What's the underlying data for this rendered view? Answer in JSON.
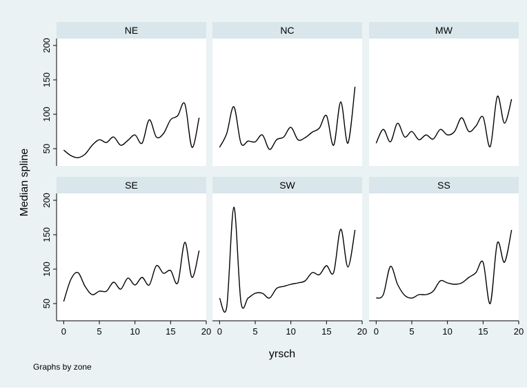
{
  "chart_data": {
    "type": "line",
    "xlabel": "yrsch",
    "ylabel": "Median spline",
    "note": "Graphs by zone",
    "xlim": [
      -1,
      20
    ],
    "ylim": [
      25,
      210
    ],
    "xticks": [
      0,
      5,
      10,
      15,
      20
    ],
    "yticks": [
      50,
      100,
      150,
      200
    ],
    "grid": false,
    "colors": {
      "background": "#eaf2f3",
      "plot_bg": "#ffffff",
      "strip_bg": "#d9e6eb",
      "line": "#000000"
    },
    "panels": [
      {
        "name": "NE",
        "x": [
          0,
          1,
          2,
          3,
          4,
          5,
          6,
          7,
          8,
          9,
          10,
          11,
          12,
          13,
          14,
          15,
          16,
          17,
          18,
          19
        ],
        "values": [
          48,
          40,
          37,
          42,
          55,
          63,
          59,
          67,
          55,
          62,
          70,
          58,
          92,
          67,
          72,
          92,
          98,
          115,
          52,
          95
        ]
      },
      {
        "name": "NC",
        "x": [
          0,
          1,
          2,
          3,
          4,
          5,
          6,
          7,
          8,
          9,
          10,
          11,
          12,
          13,
          14,
          15,
          16,
          17,
          18,
          19
        ],
        "values": [
          52,
          72,
          111,
          58,
          61,
          60,
          70,
          49,
          63,
          67,
          81,
          63,
          66,
          74,
          80,
          98,
          55,
          118,
          58,
          140
        ]
      },
      {
        "name": "MW",
        "x": [
          0,
          1,
          2,
          3,
          4,
          5,
          6,
          7,
          8,
          9,
          10,
          11,
          12,
          13,
          14,
          15,
          16,
          17,
          18,
          19
        ],
        "values": [
          58,
          78,
          60,
          87,
          67,
          75,
          63,
          70,
          64,
          78,
          70,
          75,
          95,
          75,
          83,
          96,
          53,
          126,
          87,
          122
        ]
      },
      {
        "name": "SE",
        "x": [
          0,
          1,
          2,
          3,
          4,
          5,
          6,
          7,
          8,
          9,
          10,
          11,
          12,
          13,
          14,
          15,
          16,
          17,
          18,
          19
        ],
        "values": [
          53,
          85,
          95,
          75,
          63,
          68,
          68,
          81,
          71,
          87,
          77,
          88,
          77,
          105,
          94,
          98,
          80,
          139,
          88,
          127
        ]
      },
      {
        "name": "SW",
        "x": [
          0,
          1,
          2,
          3,
          4,
          5,
          6,
          7,
          8,
          9,
          10,
          11,
          12,
          13,
          14,
          15,
          16,
          17,
          18,
          19
        ],
        "values": [
          58,
          45,
          190,
          52,
          58,
          65,
          65,
          58,
          72,
          75,
          78,
          80,
          83,
          95,
          92,
          105,
          95,
          158,
          103,
          157
        ]
      },
      {
        "name": "SS",
        "x": [
          0,
          1,
          2,
          3,
          4,
          5,
          6,
          7,
          8,
          9,
          10,
          11,
          12,
          13,
          14,
          15,
          16,
          17,
          18,
          19
        ],
        "values": [
          58,
          63,
          104,
          78,
          62,
          58,
          63,
          63,
          68,
          83,
          80,
          78,
          80,
          88,
          95,
          110,
          50,
          138,
          110,
          157
        ]
      }
    ]
  }
}
